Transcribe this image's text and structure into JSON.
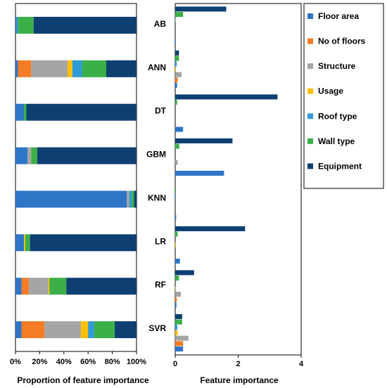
{
  "colors": {
    "Floor area": "#2E75C8",
    "No of floors": "#F47C25",
    "Structure": "#A5A5A5",
    "Usage": "#FFC000",
    "Roof type": "#2F9BD7",
    "Wall type": "#3CAF48",
    "Equipment": "#0E3F72"
  },
  "chart_data": [
    {
      "type": "bar",
      "orientation": "horizontal",
      "stacked": true,
      "title": "",
      "xlabel": "Proportion of feature importance",
      "ylabel": "",
      "xlim": [
        0,
        100
      ],
      "xticks": [
        "0%",
        "20%",
        "40%",
        "60%",
        "80%",
        "100%"
      ],
      "categories": [
        "AB",
        "ANN",
        "DT",
        "GBM",
        "KNN",
        "LR",
        "RF",
        "SVR"
      ],
      "series": [
        {
          "name": "Floor area",
          "values": [
            1,
            2,
            7,
            10,
            92,
            7,
            5,
            5
          ]
        },
        {
          "name": "No of floors",
          "values": [
            0,
            11,
            0,
            0,
            0,
            0,
            6,
            19
          ]
        },
        {
          "name": "Structure",
          "values": [
            0,
            30,
            0,
            3,
            2,
            0,
            16,
            30
          ]
        },
        {
          "name": "Usage",
          "values": [
            0,
            4,
            0,
            0,
            0,
            1,
            1,
            6
          ]
        },
        {
          "name": "Roof type",
          "values": [
            1,
            8,
            0,
            0,
            2,
            0,
            0,
            5
          ]
        },
        {
          "name": "Wall type",
          "values": [
            13,
            20,
            2,
            5,
            2,
            4,
            14,
            17
          ]
        },
        {
          "name": "Equipment",
          "values": [
            85,
            25,
            91,
            82,
            2,
            88,
            58,
            18
          ]
        }
      ]
    },
    {
      "type": "bar",
      "orientation": "horizontal",
      "stacked": false,
      "title": "",
      "xlabel": "Feature importance",
      "ylabel": "",
      "xlim": [
        0,
        4
      ],
      "xticks": [
        "0",
        "2",
        "4"
      ],
      "categories": [
        "AB",
        "ANN",
        "DT",
        "GBM",
        "KNN",
        "LR",
        "RF",
        "SVR"
      ],
      "legend_position": "right",
      "series": [
        {
          "name": "Floor area",
          "values": [
            0.02,
            0.06,
            0.25,
            1.55,
            0.03,
            0.15,
            0.04,
            0.25
          ]
        },
        {
          "name": "No of floors",
          "values": [
            0.0,
            0.08,
            0.0,
            0.0,
            0.0,
            0.0,
            0.05,
            0.25
          ]
        },
        {
          "name": "Structure",
          "values": [
            0.0,
            0.2,
            0.0,
            0.08,
            0.0,
            0.0,
            0.18,
            0.42
          ]
        },
        {
          "name": "Usage",
          "values": [
            0.0,
            0.02,
            0.0,
            0.0,
            0.0,
            0.02,
            0.01,
            0.08
          ]
        },
        {
          "name": "Roof type",
          "values": [
            0.01,
            0.05,
            0.0,
            0.0,
            0.02,
            0.0,
            0.0,
            0.07
          ]
        },
        {
          "name": "Wall type",
          "values": [
            0.25,
            0.12,
            0.06,
            0.13,
            0.02,
            0.08,
            0.12,
            0.22
          ]
        },
        {
          "name": "Equipment",
          "values": [
            1.62,
            0.12,
            3.25,
            1.82,
            0.0,
            2.22,
            0.6,
            0.22
          ]
        }
      ]
    }
  ]
}
